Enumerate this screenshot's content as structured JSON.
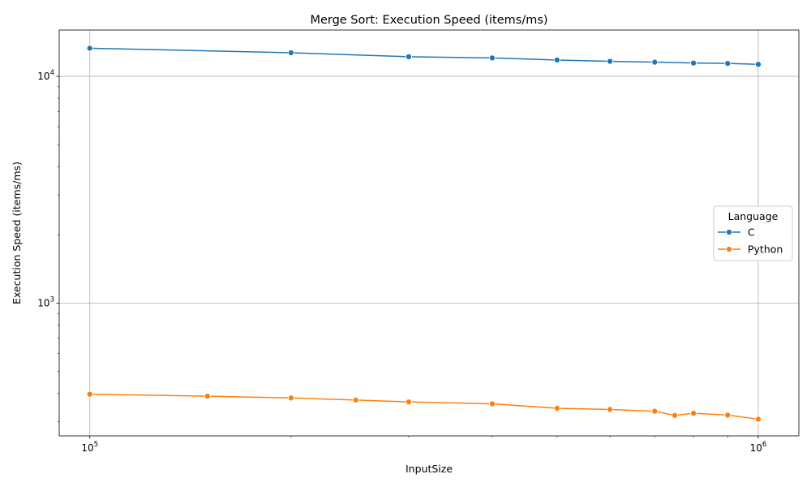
{
  "chart_data": {
    "type": "line",
    "title": "Merge Sort: Execution Speed (items/ms)",
    "xlabel": "InputSize",
    "ylabel": "Execution Speed (items/ms)",
    "xscale": "log",
    "yscale": "log",
    "xlim": [
      90000,
      1150000
    ],
    "ylim": [
      260,
      16000
    ],
    "x_ticks": [
      {
        "value": 100000,
        "base": "10",
        "exp": "5"
      },
      {
        "value": 1000000,
        "base": "10",
        "exp": "6"
      }
    ],
    "y_ticks": [
      {
        "value": 1000,
        "base": "10",
        "exp": "3"
      },
      {
        "value": 10000,
        "base": "10",
        "exp": "4"
      }
    ],
    "grid": true,
    "legend": {
      "title": "Language",
      "position": "center-right"
    },
    "series": [
      {
        "name": "C",
        "color": "#1f77b4",
        "x": [
          100000,
          200000,
          300000,
          400000,
          500000,
          600000,
          700000,
          800000,
          900000,
          1000000
        ],
        "y": [
          13300,
          12700,
          12200,
          12050,
          11800,
          11650,
          11550,
          11450,
          11400,
          11300
        ]
      },
      {
        "name": "Python",
        "color": "#ff7f0e",
        "x": [
          100000,
          150000,
          200000,
          250000,
          300000,
          400000,
          500000,
          600000,
          700000,
          750000,
          800000,
          900000,
          1000000
        ],
        "y": [
          397,
          389,
          382,
          374,
          367,
          360,
          344,
          340,
          334,
          320,
          327,
          321,
          308
        ]
      }
    ]
  }
}
